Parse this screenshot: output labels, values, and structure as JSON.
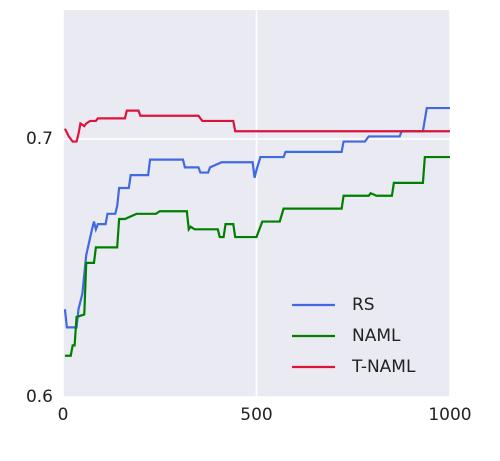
{
  "chart_data": {
    "type": "line",
    "xlim": [
      0,
      1000
    ],
    "xticks": [
      0,
      500,
      1000
    ],
    "ylim": [
      0.6,
      0.75
    ],
    "yticks": [
      0.6,
      0.7
    ],
    "grid": true,
    "legend": "lower right",
    "series": [
      {
        "name": "RS",
        "color": "#4169e1",
        "x": [
          5,
          10,
          35,
          40,
          50,
          60,
          75,
          80,
          85,
          90,
          110,
          115,
          135,
          140,
          145,
          170,
          175,
          220,
          225,
          310,
          315,
          350,
          355,
          375,
          380,
          410,
          490,
          495,
          500,
          510,
          570,
          575,
          720,
          725,
          780,
          790,
          870,
          875,
          930,
          940,
          1000
        ],
        "values": [
          0.634,
          0.627,
          0.627,
          0.634,
          0.64,
          0.655,
          0.665,
          0.668,
          0.665,
          0.667,
          0.667,
          0.671,
          0.671,
          0.674,
          0.681,
          0.681,
          0.686,
          0.686,
          0.692,
          0.692,
          0.689,
          0.689,
          0.687,
          0.687,
          0.689,
          0.691,
          0.691,
          0.685,
          0.688,
          0.693,
          0.693,
          0.695,
          0.695,
          0.699,
          0.699,
          0.701,
          0.701,
          0.703,
          0.703,
          0.712,
          0.712
        ]
      },
      {
        "name": "NAML",
        "color": "#008000",
        "x": [
          5,
          20,
          25,
          30,
          35,
          55,
          60,
          80,
          85,
          140,
          145,
          160,
          190,
          240,
          250,
          320,
          325,
          330,
          340,
          400,
          405,
          415,
          420,
          440,
          445,
          500,
          505,
          515,
          560,
          570,
          720,
          725,
          790,
          795,
          810,
          850,
          855,
          930,
          935,
          1000
        ],
        "values": [
          0.616,
          0.616,
          0.62,
          0.62,
          0.631,
          0.632,
          0.652,
          0.652,
          0.658,
          0.658,
          0.669,
          0.669,
          0.671,
          0.671,
          0.672,
          0.672,
          0.665,
          0.666,
          0.665,
          0.665,
          0.662,
          0.662,
          0.667,
          0.667,
          0.662,
          0.662,
          0.664,
          0.668,
          0.668,
          0.673,
          0.673,
          0.678,
          0.678,
          0.679,
          0.678,
          0.678,
          0.683,
          0.683,
          0.693,
          0.693
        ]
      },
      {
        "name": "T-NAML",
        "color": "#dc143c",
        "x": [
          5,
          15,
          20,
          25,
          35,
          40,
          45,
          55,
          60,
          70,
          85,
          90,
          160,
          165,
          195,
          200,
          350,
          360,
          440,
          445,
          1000
        ],
        "values": [
          0.704,
          0.701,
          0.7,
          0.699,
          0.699,
          0.702,
          0.706,
          0.705,
          0.706,
          0.707,
          0.707,
          0.708,
          0.708,
          0.711,
          0.711,
          0.709,
          0.709,
          0.707,
          0.707,
          0.703,
          0.703
        ]
      }
    ]
  }
}
